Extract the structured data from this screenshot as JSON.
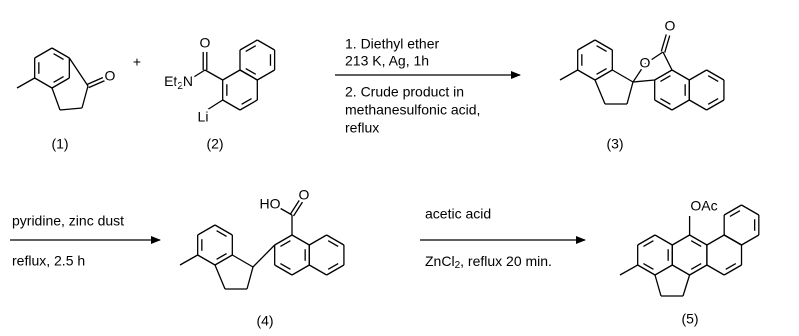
{
  "compound_1": {
    "label": "(1)",
    "carbonyl_o": "O"
  },
  "plus": "+",
  "compound_2": {
    "label": "(2)",
    "carbonyl_o": "O",
    "amine": [
      "Et",
      "2",
      "N"
    ],
    "lithium": "Li"
  },
  "step_1": {
    "conditions": [
      "1. Diethyl ether",
      "213 K, Ag, 1h",
      "2. Crude product in",
      "methanesulfonic acid,",
      "reflux"
    ]
  },
  "compound_3": {
    "label": "(3)",
    "carbonyl_o": "O",
    "ring_o": "O"
  },
  "step_2": {
    "above": "pyridine, zinc dust",
    "below": "reflux, 2.5 h"
  },
  "compound_4": {
    "label": "(4)",
    "hydroxyl": "HO",
    "carbonyl_o": "O"
  },
  "step_3": {
    "above": "acetic acid",
    "below": [
      "ZnCl",
      "2",
      ", reflux 20 min."
    ]
  },
  "compound_5": {
    "label": "(5)",
    "acetoxy": "OAc"
  }
}
